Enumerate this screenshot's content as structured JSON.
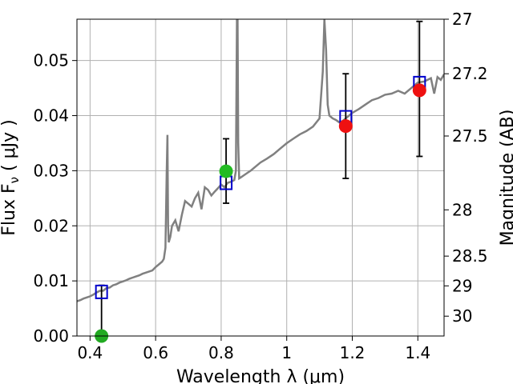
{
  "chart_data": {
    "type": "scatter",
    "xlabel": "Wavelength  λ (μm)",
    "ylabel": "Flux  F",
    "ylabel_sub": "ν",
    "ylabel_unit": "  ( μJy )",
    "y2label": "Magnitude (AB)",
    "xlim": [
      0.36,
      1.48
    ],
    "ylim": [
      0.0,
      0.0575
    ],
    "grid": true,
    "x_ticks": [
      0.4,
      0.6,
      0.8,
      1.0,
      1.2,
      1.4
    ],
    "x_tick_labels": [
      "0.4",
      "0.6",
      "0.8",
      "1",
      "1.2",
      "1.4"
    ],
    "y_ticks": [
      0.0,
      0.01,
      0.02,
      0.03,
      0.04,
      0.05
    ],
    "y_tick_labels": [
      "0.00",
      "0.01",
      "0.02",
      "0.03",
      "0.04",
      "0.05"
    ],
    "y2_ticks": [
      {
        "flux": 0.0575,
        "label": "27"
      },
      {
        "flux": 0.0476,
        "label": "27.2"
      },
      {
        "flux": 0.0363,
        "label": "27.5"
      },
      {
        "flux": 0.0229,
        "label": "28"
      },
      {
        "flux": 0.0145,
        "label": "28.5"
      },
      {
        "flux": 0.0091,
        "label": "29"
      },
      {
        "flux": 0.0036,
        "label": "30"
      }
    ],
    "sed_model": {
      "color": "#808080",
      "x": [
        0.36,
        0.37,
        0.38,
        0.39,
        0.4,
        0.41,
        0.42,
        0.43,
        0.44,
        0.45,
        0.46,
        0.47,
        0.48,
        0.49,
        0.5,
        0.51,
        0.52,
        0.53,
        0.54,
        0.55,
        0.56,
        0.57,
        0.58,
        0.59,
        0.6,
        0.61,
        0.62,
        0.625,
        0.63,
        0.634,
        0.636,
        0.638,
        0.64,
        0.645,
        0.65,
        0.66,
        0.67,
        0.68,
        0.69,
        0.7,
        0.71,
        0.72,
        0.73,
        0.74,
        0.75,
        0.76,
        0.77,
        0.78,
        0.79,
        0.8,
        0.81,
        0.82,
        0.83,
        0.84,
        0.845,
        0.848,
        0.85,
        0.852,
        0.855,
        0.86,
        0.87,
        0.88,
        0.89,
        0.9,
        0.92,
        0.94,
        0.96,
        0.98,
        1.0,
        1.02,
        1.04,
        1.06,
        1.08,
        1.1,
        1.11,
        1.115,
        1.12,
        1.125,
        1.13,
        1.14,
        1.15,
        1.16,
        1.17,
        1.18,
        1.2,
        1.22,
        1.24,
        1.26,
        1.28,
        1.3,
        1.32,
        1.34,
        1.36,
        1.38,
        1.4,
        1.42,
        1.44,
        1.45,
        1.46,
        1.47,
        1.48
      ],
      "y": [
        0.0063,
        0.0065,
        0.0068,
        0.007,
        0.0072,
        0.0075,
        0.0079,
        0.0082,
        0.0082,
        0.0087,
        0.0088,
        0.0092,
        0.0094,
        0.0097,
        0.0099,
        0.0101,
        0.0104,
        0.0106,
        0.0108,
        0.011,
        0.0113,
        0.0115,
        0.0117,
        0.0119,
        0.0125,
        0.013,
        0.0135,
        0.014,
        0.016,
        0.03,
        0.0365,
        0.02,
        0.017,
        0.018,
        0.02,
        0.021,
        0.019,
        0.022,
        0.0245,
        0.024,
        0.0235,
        0.025,
        0.026,
        0.023,
        0.027,
        0.0265,
        0.0255,
        0.0262,
        0.0268,
        0.0275,
        0.027,
        0.0278,
        0.028,
        0.0283,
        0.03,
        0.0575,
        0.0575,
        0.035,
        0.0286,
        0.0288,
        0.0292,
        0.0296,
        0.03,
        0.0305,
        0.0315,
        0.0322,
        0.033,
        0.034,
        0.035,
        0.0358,
        0.0366,
        0.0372,
        0.038,
        0.0395,
        0.048,
        0.0575,
        0.052,
        0.042,
        0.04,
        0.0395,
        0.0392,
        0.0388,
        0.039,
        0.0395,
        0.0405,
        0.0412,
        0.042,
        0.0428,
        0.0432,
        0.0438,
        0.044,
        0.0445,
        0.044,
        0.045,
        0.046,
        0.0462,
        0.0468,
        0.044,
        0.047,
        0.0465,
        0.0475
      ]
    },
    "model_points": {
      "color": "#0000cc",
      "x": [
        0.435,
        0.815,
        1.18,
        1.405
      ],
      "y": [
        0.008,
        0.0278,
        0.0397,
        0.0459
      ]
    },
    "observed_points": {
      "x": [
        0.435,
        0.815,
        1.18,
        1.405
      ],
      "y": [
        0.0,
        0.0299,
        0.0381,
        0.0446
      ],
      "yerr_low": [
        0.0,
        0.0058,
        0.0095,
        0.012
      ],
      "yerr_high": [
        0.0092,
        0.0059,
        0.0095,
        0.0125
      ],
      "colors": [
        "#22aa22",
        "#22bb22",
        "#ee1111",
        "#ee1111"
      ]
    }
  }
}
